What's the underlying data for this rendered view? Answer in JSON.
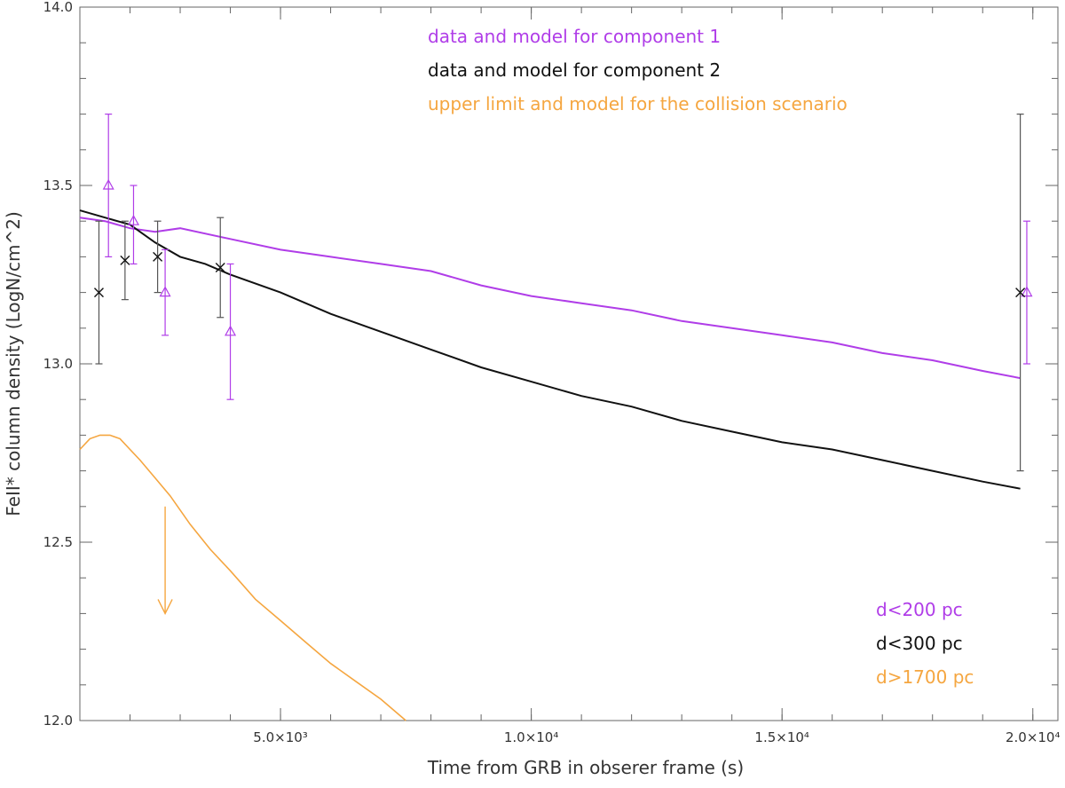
{
  "chart_data": {
    "type": "scatter",
    "title": "",
    "xlabel": "Time from GRB in obserer frame (s)",
    "ylabel": "FeII* column density (LogN/cm^2)",
    "xlim": [
      1000,
      20500
    ],
    "ylim": [
      12.0,
      14.0
    ],
    "xticks": [
      {
        "value": 5000,
        "label": "5.0×10³"
      },
      {
        "value": 10000,
        "label": "1.0×10⁴"
      },
      {
        "value": 15000,
        "label": "1.5×10⁴"
      },
      {
        "value": 20000,
        "label": "2.0×10⁴"
      }
    ],
    "yticks": [
      {
        "value": 12.0,
        "label": "12.0"
      },
      {
        "value": 12.5,
        "label": "12.5"
      },
      {
        "value": 13.0,
        "label": "13.0"
      },
      {
        "value": 13.5,
        "label": "13.5"
      },
      {
        "value": 14.0,
        "label": "14.0"
      }
    ],
    "grid": false,
    "legend_top": [
      {
        "text": "data and model for component 1",
        "color": "#b03de8"
      },
      {
        "text": "data and model for component 2",
        "color": "#111111"
      },
      {
        "text": "upper limit and model for the collision scenario",
        "color": "#f5a640"
      }
    ],
    "legend_bottom": [
      {
        "text": "d<200 pc",
        "color": "#b03de8"
      },
      {
        "text": "d<300 pc",
        "color": "#111111"
      },
      {
        "text": "d>1700 pc",
        "color": "#f5a640"
      }
    ],
    "series": [
      {
        "color": "#b03de8",
        "marker": "triangle",
        "points": [
          {
            "x": 1570,
            "y": 13.5,
            "yerr_low": 13.3,
            "yerr_high": 13.7
          },
          {
            "x": 2070,
            "y": 13.4,
            "yerr_low": 13.28,
            "yerr_high": 13.5
          },
          {
            "x": 2700,
            "y": 13.2,
            "yerr_low": 13.08,
            "yerr_high": 13.32
          },
          {
            "x": 4000,
            "y": 13.09,
            "yerr_low": 12.9,
            "yerr_high": 13.28
          },
          {
            "x": 19880,
            "y": 13.2,
            "yerr_low": 13.0,
            "yerr_high": 13.4
          }
        ],
        "model": [
          [
            1000,
            13.41
          ],
          [
            1500,
            13.4
          ],
          [
            2000,
            13.38
          ],
          [
            2500,
            13.37
          ],
          [
            3000,
            13.38
          ],
          [
            4000,
            13.35
          ],
          [
            5000,
            13.32
          ],
          [
            6000,
            13.3
          ],
          [
            7000,
            13.28
          ],
          [
            8000,
            13.26
          ],
          [
            9000,
            13.22
          ],
          [
            10000,
            13.19
          ],
          [
            11000,
            13.17
          ],
          [
            12000,
            13.15
          ],
          [
            13000,
            13.12
          ],
          [
            14000,
            13.1
          ],
          [
            15000,
            13.08
          ],
          [
            16000,
            13.06
          ],
          [
            17000,
            13.03
          ],
          [
            18000,
            13.01
          ],
          [
            19000,
            12.98
          ],
          [
            19750,
            12.96
          ]
        ]
      },
      {
        "color": "#111111",
        "marker": "x",
        "points": [
          {
            "x": 1380,
            "y": 13.2,
            "yerr_low": 13.0,
            "yerr_high": 13.4
          },
          {
            "x": 1900,
            "y": 13.29,
            "yerr_low": 13.18,
            "yerr_high": 13.4
          },
          {
            "x": 2550,
            "y": 13.3,
            "yerr_low": 13.2,
            "yerr_high": 13.4
          },
          {
            "x": 3800,
            "y": 13.27,
            "yerr_low": 13.13,
            "yerr_high": 13.41
          },
          {
            "x": 19750,
            "y": 13.2,
            "yerr_low": 12.7,
            "yerr_high": 13.7
          }
        ],
        "model": [
          [
            1000,
            13.43
          ],
          [
            1500,
            13.41
          ],
          [
            2000,
            13.39
          ],
          [
            2500,
            13.34
          ],
          [
            3000,
            13.3
          ],
          [
            3500,
            13.28
          ],
          [
            4000,
            13.25
          ],
          [
            5000,
            13.2
          ],
          [
            6000,
            13.14
          ],
          [
            7000,
            13.09
          ],
          [
            8000,
            13.04
          ],
          [
            9000,
            12.99
          ],
          [
            10000,
            12.95
          ],
          [
            11000,
            12.91
          ],
          [
            12000,
            12.88
          ],
          [
            13000,
            12.84
          ],
          [
            14000,
            12.81
          ],
          [
            15000,
            12.78
          ],
          [
            16000,
            12.76
          ],
          [
            17000,
            12.73
          ],
          [
            18000,
            12.7
          ],
          [
            19000,
            12.67
          ],
          [
            19750,
            12.65
          ]
        ]
      },
      {
        "color": "#f5a640",
        "marker": "arrow",
        "upper_limit": {
          "x": 2700,
          "y_from": 12.6,
          "y_to": 12.3
        },
        "model": [
          [
            1000,
            12.76
          ],
          [
            1200,
            12.79
          ],
          [
            1400,
            12.8
          ],
          [
            1600,
            12.8
          ],
          [
            1800,
            12.79
          ],
          [
            2000,
            12.76
          ],
          [
            2200,
            12.73
          ],
          [
            2500,
            12.68
          ],
          [
            2800,
            12.63
          ],
          [
            3200,
            12.55
          ],
          [
            3600,
            12.48
          ],
          [
            4000,
            12.42
          ],
          [
            4500,
            12.34
          ],
          [
            5000,
            12.28
          ],
          [
            5500,
            12.22
          ],
          [
            6000,
            12.16
          ],
          [
            6500,
            12.11
          ],
          [
            7000,
            12.06
          ],
          [
            7500,
            12.0
          ]
        ]
      }
    ]
  }
}
